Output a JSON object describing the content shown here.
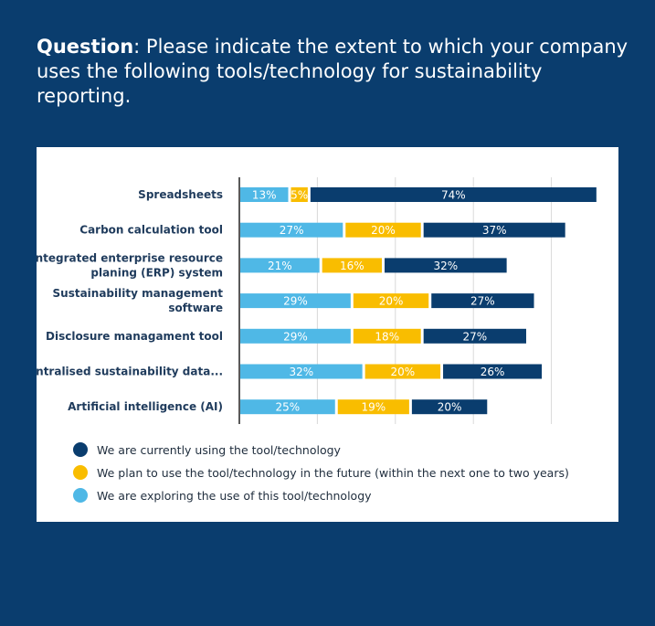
{
  "header": {
    "lead": "Question",
    "text": ": Please indicate the extent to which your company uses the following tools/technology for sustainability reporting."
  },
  "colors": {
    "background": "#0a3d6e",
    "exploring": "#4fb8e6",
    "planning": "#f9bd00",
    "using": "#0a3d6e"
  },
  "chart_data": {
    "type": "bar",
    "orientation": "horizontal",
    "stacked": true,
    "xlim": [
      0,
      100
    ],
    "gridlines": [
      0,
      20,
      40,
      60,
      80
    ],
    "categories": [
      [
        "Spreadsheets"
      ],
      [
        "Carbon calculation tool"
      ],
      [
        "Integrated enterprise resource",
        "planing (ERP) system"
      ],
      [
        "Sustainability management",
        "software"
      ],
      [
        "Disclosure managament tool"
      ],
      [
        "Centralised sustainability data..."
      ],
      [
        "Artificial intelligence (AI)"
      ]
    ],
    "series": [
      {
        "name": "We are exploring the use of this tool/technology",
        "key": "exploring",
        "values": [
          13,
          27,
          21,
          29,
          29,
          32,
          25
        ],
        "labels": [
          "13%",
          "27%",
          "21%",
          "29%",
          "29%",
          "32%",
          "25%"
        ]
      },
      {
        "name": "We plan to use the tool/technology in the future (within the next one to two years)",
        "key": "planning",
        "values": [
          5,
          20,
          16,
          20,
          18,
          20,
          19
        ],
        "labels": [
          "5%",
          "20%",
          "16%",
          "20%",
          "18%",
          "20%",
          "19%"
        ]
      },
      {
        "name": "We are currently using the tool/technology",
        "key": "using",
        "values": [
          74,
          37,
          32,
          27,
          27,
          26,
          20
        ],
        "labels": [
          "74%",
          "37%",
          "32%",
          "27%",
          "27%",
          "26%",
          "20%"
        ]
      }
    ],
    "legend": [
      {
        "key": "using",
        "label": "We are currently using the tool/technology"
      },
      {
        "key": "planning",
        "label": "We plan to use the tool/technology in the future (within the next one to two years)"
      },
      {
        "key": "exploring",
        "label": "We are exploring the use of this tool/technology"
      }
    ]
  }
}
